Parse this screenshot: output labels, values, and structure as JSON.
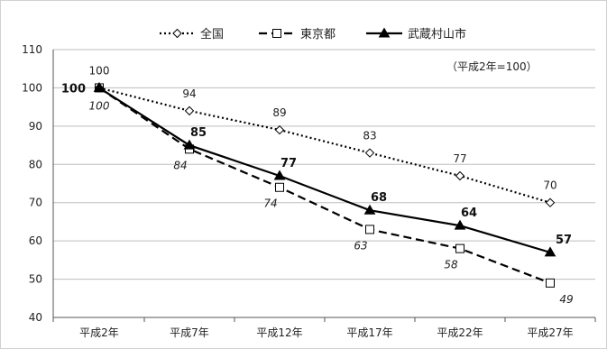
{
  "chart_data": {
    "type": "line",
    "categories": [
      "平成2年",
      "平成7年",
      "平成12年",
      "平成17年",
      "平成22年",
      "平成27年"
    ],
    "series": [
      {
        "name": "全国",
        "values": [
          100,
          94,
          89,
          83,
          77,
          70
        ],
        "style": "dotted",
        "marker": "diamond",
        "color": "#000000"
      },
      {
        "name": "東京都",
        "values": [
          100,
          84,
          74,
          63,
          58,
          49
        ],
        "style": "dashed",
        "marker": "square",
        "color": "#000000"
      },
      {
        "name": "武蔵村山市",
        "values": [
          100,
          85,
          77,
          68,
          64,
          57
        ],
        "style": "solid",
        "marker": "triangle",
        "color": "#000000"
      }
    ],
    "yticks": [
      40,
      50,
      60,
      70,
      80,
      90,
      100,
      110
    ],
    "ylim": [
      40,
      110
    ],
    "grid": true,
    "legend_position": "top-center",
    "annotation": "（平成2年=100）",
    "title": "",
    "xlabel": "",
    "ylabel": ""
  }
}
